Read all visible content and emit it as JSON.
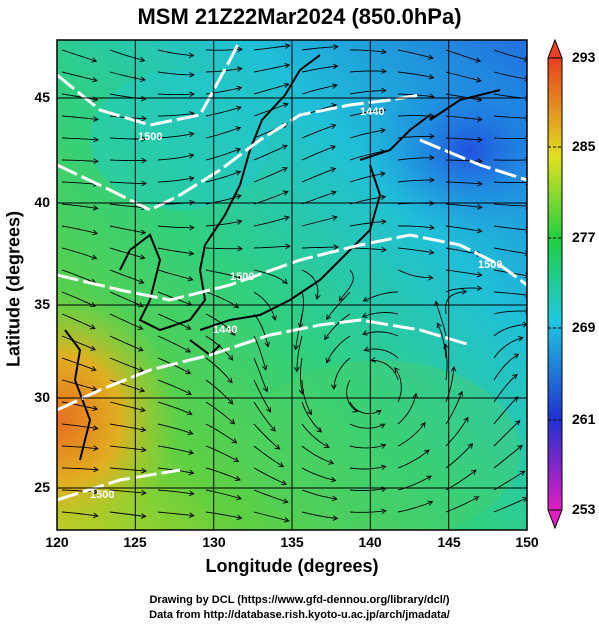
{
  "title": "MSM 21Z22Mar2024 (850.0hPa)",
  "xlabel": "Longitude (degrees)",
  "ylabel": "Latitude  (degrees)",
  "credits": {
    "line1": "Drawing by DCL (https://www.gfd-dennou.org/library/dcl/)",
    "line2": "Data from http://database.rish.kyoto-u.ac.jp/arch/jmadata/"
  },
  "colorbar": {
    "range": [
      253,
      293
    ],
    "ticks": [
      "293",
      "285",
      "277",
      "269",
      "261",
      "253"
    ],
    "unit_colors": [
      "#e020c0",
      "#2030d0",
      "#20c8e0",
      "#20d040",
      "#e0e020",
      "#e84020"
    ]
  },
  "contour_labels": [
    "1500",
    "1440",
    "1500",
    "1440",
    "1500",
    "1500"
  ],
  "chart_data": {
    "type": "heatmap",
    "field": "temperature with wind streamlines and geopotential height contours",
    "x_ticks": [
      "120",
      "125",
      "130",
      "135",
      "140",
      "145",
      "150"
    ],
    "y_ticks": [
      "45",
      "40",
      "35",
      "30",
      "25"
    ],
    "xlim": [
      120,
      150
    ],
    "ylim": [
      22.4,
      47.6
    ],
    "grid": true,
    "features": {
      "cold_core_lon": 148.5,
      "cold_core_lat": 41.5,
      "warm_region_lon": 121,
      "warm_region_lat": 27,
      "anticyclone_center_lon": 140,
      "anticyclone_center_lat": 28
    }
  }
}
